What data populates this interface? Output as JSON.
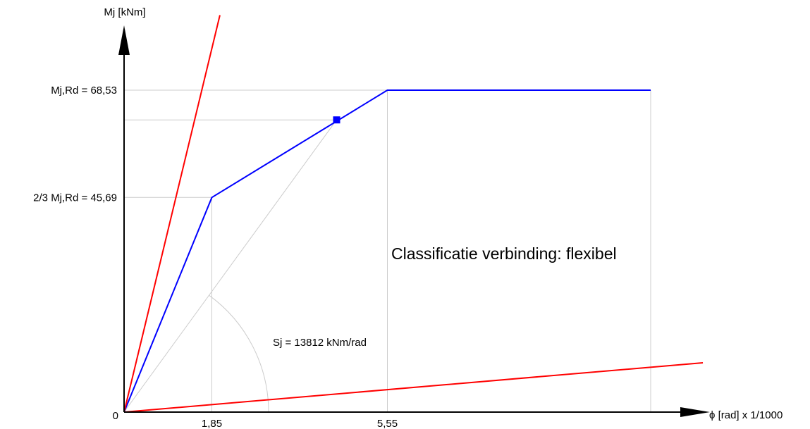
{
  "chart_data": {
    "type": "line",
    "xlabel": "ϕ [rad] x 1/1000",
    "ylabel": "Mj [kNm]",
    "origin_label": "0",
    "x_ticks": [
      {
        "value": 1.85,
        "label": "1,85"
      },
      {
        "value": 5.55,
        "label": "5,55"
      }
    ],
    "y_ticks": [
      {
        "value": 45.69,
        "label": "2/3 Mj,Rd = 45,69"
      },
      {
        "value": 68.53,
        "label": "Mj,Rd = 68,53"
      }
    ],
    "xlim": [
      0,
      12.2
    ],
    "ylim": [
      0,
      86.5
    ],
    "series": [
      {
        "color": "#0000ff",
        "x": [
          0,
          1.85,
          5.55,
          11.1
        ],
        "y": [
          0,
          45.69,
          68.53,
          68.53
        ]
      },
      {
        "color": "#ff0000",
        "x": [
          0,
          2.02
        ],
        "y": [
          0,
          84.5
        ]
      },
      {
        "color": "#ff0000",
        "x": [
          0,
          12.2
        ],
        "y": [
          0,
          10.5
        ]
      }
    ],
    "design_point": {
      "x": 4.48,
      "y": 62.2,
      "color": "#0000ff"
    },
    "stiffness_label": "Sj = 13812 kNm/rad",
    "annotation": "Classificatie verbinding: flexibel",
    "grid": "partial",
    "grid_color": "#cccccc"
  }
}
